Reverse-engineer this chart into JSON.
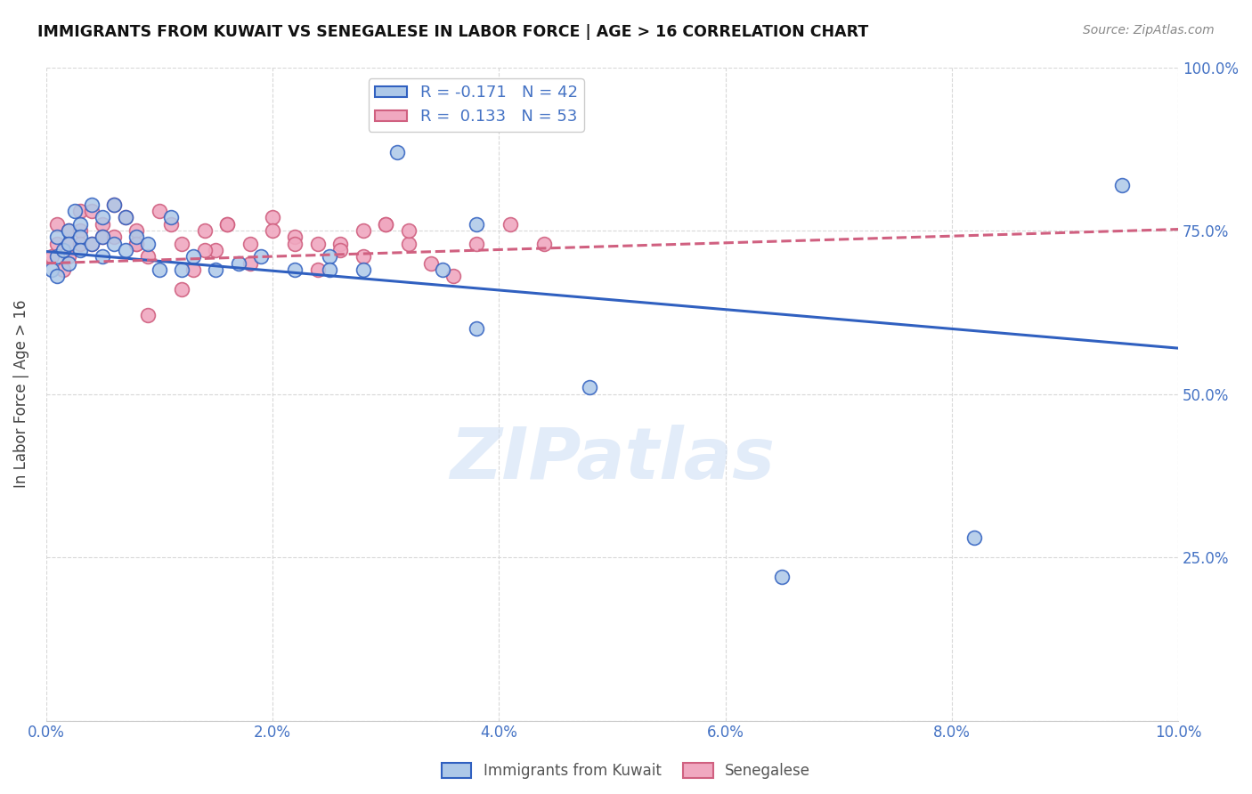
{
  "title": "IMMIGRANTS FROM KUWAIT VS SENEGALESE IN LABOR FORCE | AGE > 16 CORRELATION CHART",
  "source": "Source: ZipAtlas.com",
  "ylabel": "In Labor Force | Age > 16",
  "xlim": [
    0.0,
    0.1
  ],
  "ylim": [
    0.0,
    1.0
  ],
  "xticks": [
    0.0,
    0.02,
    0.04,
    0.06,
    0.08,
    0.1
  ],
  "xtick_labels": [
    "0.0%",
    "2.0%",
    "4.0%",
    "6.0%",
    "8.0%",
    "10.0%"
  ],
  "yticks": [
    0.0,
    0.25,
    0.5,
    0.75,
    1.0
  ],
  "ytick_labels": [
    "",
    "25.0%",
    "50.0%",
    "75.0%",
    "100.0%"
  ],
  "kuwait_R": -0.171,
  "kuwait_N": 42,
  "senegal_R": 0.133,
  "senegal_N": 53,
  "kuwait_color": "#adc8e8",
  "senegal_color": "#f0a8c0",
  "kuwait_line_color": "#3060c0",
  "senegal_line_color": "#d06080",
  "legend_label_kuwait": "Immigrants from Kuwait",
  "legend_label_senegal": "Senegalese",
  "watermark": "ZIPatlas",
  "background_color": "#ffffff",
  "grid_color": "#d8d8d8",
  "title_color": "#111111",
  "axis_tick_color": "#4472c4",
  "ylabel_color": "#444444",
  "kuwait_trend_y0": 0.718,
  "kuwait_trend_y1": 0.57,
  "senegal_trend_y0": 0.7,
  "senegal_trend_y1": 0.752,
  "kuwait_x": [
    0.0005,
    0.001,
    0.001,
    0.001,
    0.0015,
    0.002,
    0.002,
    0.002,
    0.0025,
    0.003,
    0.003,
    0.003,
    0.004,
    0.004,
    0.005,
    0.005,
    0.005,
    0.006,
    0.006,
    0.007,
    0.007,
    0.008,
    0.009,
    0.01,
    0.011,
    0.012,
    0.013,
    0.015,
    0.017,
    0.019,
    0.022,
    0.025,
    0.028,
    0.031,
    0.035,
    0.038,
    0.048,
    0.065,
    0.082,
    0.095,
    0.038,
    0.025
  ],
  "kuwait_y": [
    0.69,
    0.71,
    0.74,
    0.68,
    0.72,
    0.75,
    0.73,
    0.7,
    0.78,
    0.76,
    0.74,
    0.72,
    0.79,
    0.73,
    0.77,
    0.74,
    0.71,
    0.79,
    0.73,
    0.77,
    0.72,
    0.74,
    0.73,
    0.69,
    0.77,
    0.69,
    0.71,
    0.69,
    0.7,
    0.71,
    0.69,
    0.71,
    0.69,
    0.87,
    0.69,
    0.76,
    0.51,
    0.22,
    0.28,
    0.82,
    0.6,
    0.69
  ],
  "senegal_x": [
    0.0005,
    0.001,
    0.001,
    0.0015,
    0.002,
    0.002,
    0.002,
    0.003,
    0.003,
    0.003,
    0.004,
    0.004,
    0.005,
    0.005,
    0.006,
    0.006,
    0.007,
    0.008,
    0.008,
    0.009,
    0.01,
    0.011,
    0.012,
    0.013,
    0.014,
    0.015,
    0.016,
    0.018,
    0.02,
    0.022,
    0.024,
    0.026,
    0.028,
    0.03,
    0.032,
    0.034,
    0.036,
    0.038,
    0.041,
    0.044,
    0.009,
    0.012,
    0.018,
    0.024,
    0.03,
    0.014,
    0.02,
    0.026,
    0.032,
    0.008,
    0.016,
    0.022,
    0.028
  ],
  "senegal_y": [
    0.71,
    0.73,
    0.76,
    0.69,
    0.75,
    0.73,
    0.71,
    0.78,
    0.75,
    0.73,
    0.78,
    0.73,
    0.76,
    0.74,
    0.79,
    0.74,
    0.77,
    0.73,
    0.75,
    0.71,
    0.78,
    0.76,
    0.73,
    0.69,
    0.75,
    0.72,
    0.76,
    0.73,
    0.77,
    0.74,
    0.69,
    0.73,
    0.71,
    0.76,
    0.73,
    0.7,
    0.68,
    0.73,
    0.76,
    0.73,
    0.62,
    0.66,
    0.7,
    0.73,
    0.76,
    0.72,
    0.75,
    0.72,
    0.75,
    0.73,
    0.76,
    0.73,
    0.75
  ]
}
